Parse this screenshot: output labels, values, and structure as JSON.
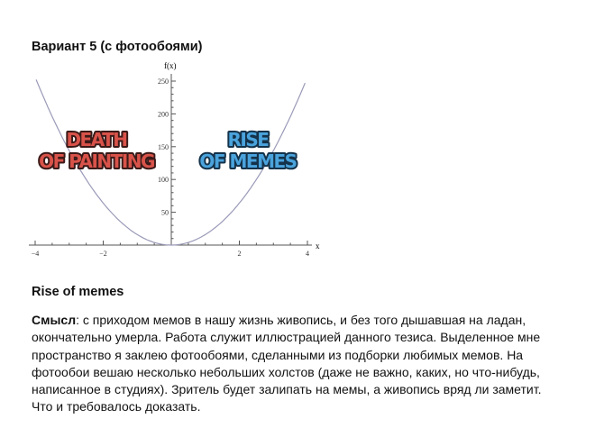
{
  "document": {
    "title": "Вариант 5 (с фотообоями)",
    "subtitle": "Rise of memes",
    "body": {
      "lead": "Смысл",
      "lines": [
        ": с приходом мемов в нашу жизнь живопись, и без того дышавшая на ладан,",
        "окончательно умерла. Работа служит иллюстрацией данного тезиса. Выделенное мне",
        "пространство я заклею фотообоями, сделанными из подборки любимых мемов. На",
        "фотообои вешаю несколько небольших холстов (даже не важно, каких, но что-нибудь,",
        "написанное в студиях). Зритель будет залипать на мемы, а живопись вряд ли заметит.",
        "Что и требовалось доказать."
      ]
    }
  },
  "chart_data": {
    "type": "line",
    "xlabel": "x",
    "ylabel": "f(x)",
    "xlim": [
      -4,
      4
    ],
    "ylim": [
      0,
      260
    ],
    "x_ticks": [
      -4,
      -2,
      2,
      4
    ],
    "y_ticks": [
      50,
      100,
      150,
      200,
      250
    ],
    "series": [
      {
        "function": "16*x^2",
        "x": [
          -4,
          -3.5,
          -3,
          -2.5,
          -2,
          -1.5,
          -1,
          -0.5,
          0,
          0.5,
          1,
          1.5,
          2,
          2.5,
          3,
          3.5,
          4
        ],
        "y": [
          256,
          196,
          144,
          100,
          64,
          36,
          16,
          4,
          0,
          4,
          16,
          36,
          64,
          100,
          144,
          196,
          256
        ],
        "color": "#9a9ab8"
      }
    ],
    "annotations": [
      {
        "lines": [
          "DEATH",
          "OF PAINTING"
        ],
        "color": "#d9534a"
      },
      {
        "lines": [
          "RISE",
          "OF MEMES"
        ],
        "color": "#4aa3dc"
      }
    ],
    "grid": false
  }
}
